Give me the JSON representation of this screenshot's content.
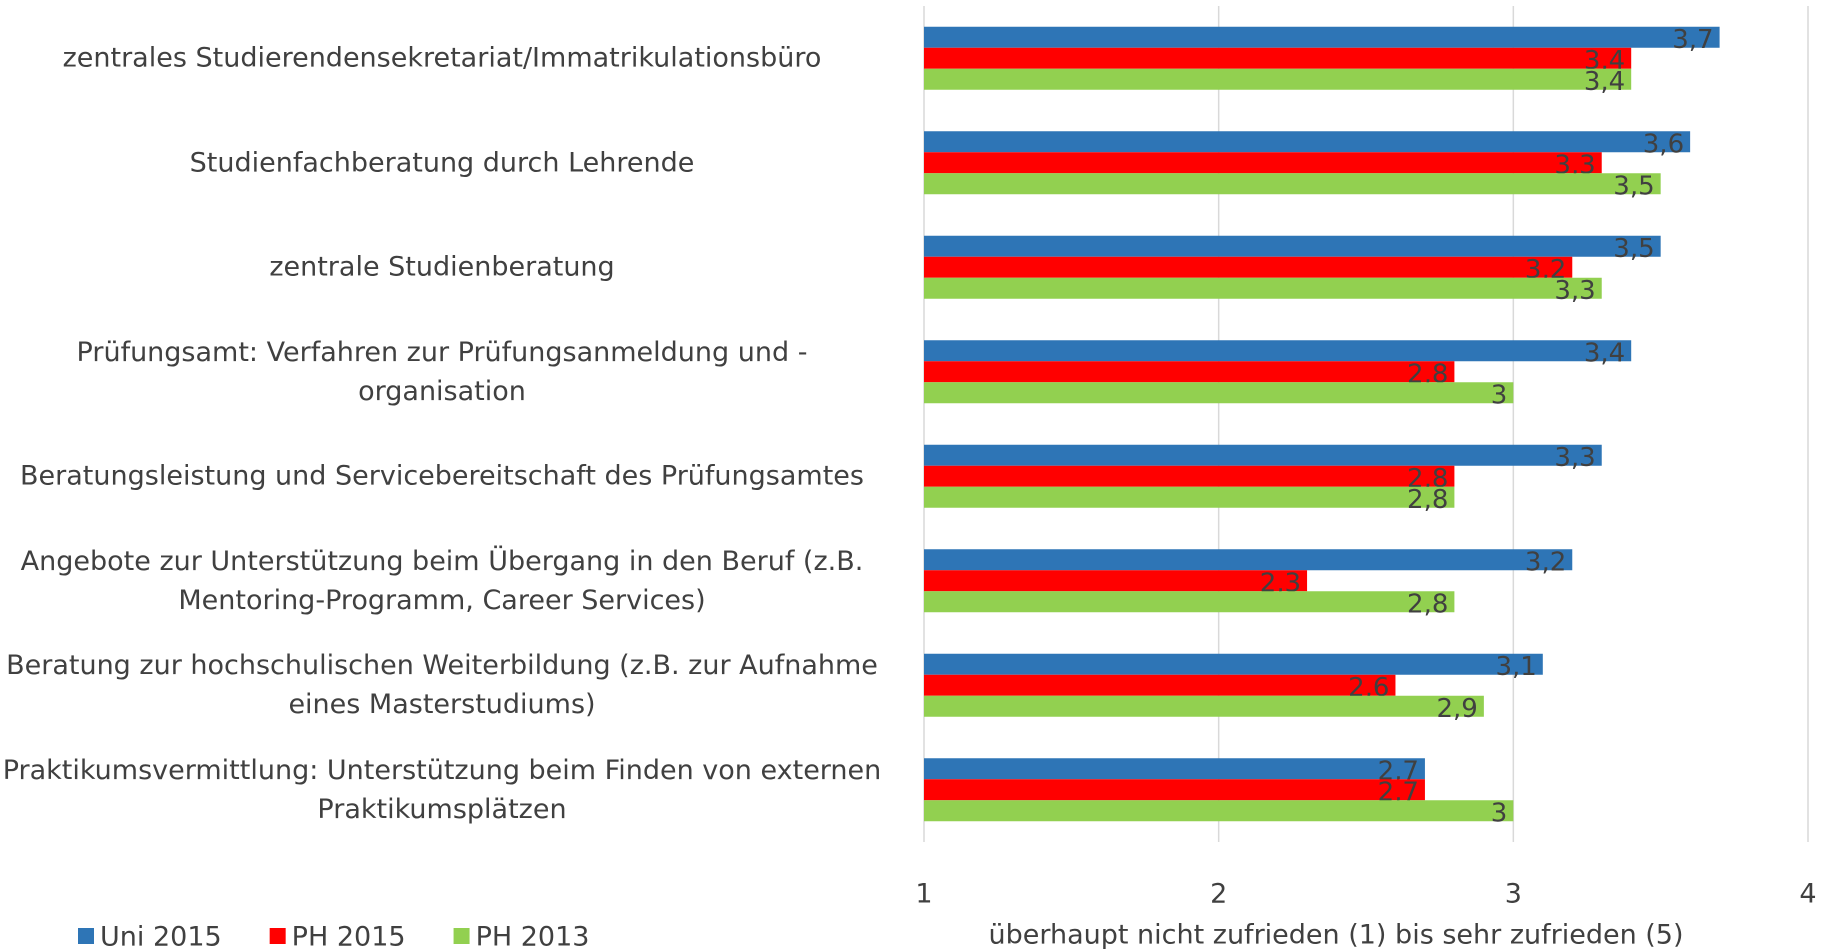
{
  "chart_data": {
    "type": "hbar",
    "categories": [
      "zentrales Studierendensekretariat/Immatrikulationsbüro",
      "Studienfachberatung durch Lehrende",
      "zentrale Studienberatung",
      "Prüfungsamt: Verfahren zur Prüfungsanmeldung und -organisation",
      "Beratungsleistung und Servicebereitschaft des Prüfungsamtes",
      "Angebote zur Unterstützung beim Übergang in den Beruf (z.B. Mentoring-Programm, Career Services)",
      "Beratung zur hochschulischen Weiterbildung (z.B. zur Aufnahme eines Masterstudiums)",
      "Praktikumsvermittlung: Unterstützung beim Finden von externen Praktikumsplätzen"
    ],
    "series": [
      {
        "name": "Uni 2015",
        "color": "#2e75b6",
        "values": [
          3.7,
          3.6,
          3.5,
          3.4,
          3.3,
          3.2,
          3.1,
          2.7
        ],
        "value_labels": [
          "3,7",
          "3,6",
          "3,5",
          "3,4",
          "3,3",
          "3,2",
          "3,1",
          "2,7"
        ]
      },
      {
        "name": "PH 2015",
        "color": "#ff0000",
        "values": [
          3.4,
          3.3,
          3.2,
          2.8,
          2.8,
          2.3,
          2.6,
          2.7
        ],
        "value_labels": [
          "3,4",
          "3,3",
          "3,2",
          "2,8",
          "2,8",
          "2,3",
          "2,6",
          "2,7"
        ]
      },
      {
        "name": "PH 2013",
        "color": "#92d050",
        "values": [
          3.4,
          3.5,
          3.3,
          3,
          2.8,
          2.8,
          2.9,
          3
        ],
        "value_labels": [
          "3,4",
          "3,5",
          "3,3",
          "3",
          "2,8",
          "2,8",
          "2,9",
          "3"
        ]
      }
    ],
    "x_label": "überhaupt nicht zufrieden (1) bis sehr zufrieden (5)",
    "xlim": [
      1,
      4
    ],
    "xticks": [
      1,
      2,
      3,
      4
    ],
    "grid": true,
    "legend": "bottom-left"
  }
}
